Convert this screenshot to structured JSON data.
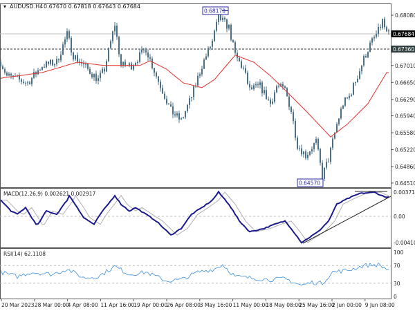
{
  "header": {
    "symbol": "AUDUSD.H4",
    "ohlc": "0.67670 0.67818 0.67643 0.67684",
    "menu_icon": "triangle-down-icon"
  },
  "colors": {
    "candle": "#4a6f86",
    "ma": "#e0302a",
    "macd": "#1a1a8c",
    "signal": "#b0b0b0",
    "rsi": "#3b8fe0",
    "bid_label_bg": "#000000",
    "level_label_bg": "#2f3f3f",
    "annotation_border": "#2a2aa0"
  },
  "chart_data": [
    {
      "type": "candlestick",
      "title": "AUDUSD.H4",
      "y_ticks": [
        "0.68080",
        "0.67010",
        "0.66650",
        "0.66290",
        "0.65940",
        "0.65580",
        "0.65220",
        "0.64860",
        "0.64510"
      ],
      "ylim": [
        0.6451,
        0.6808
      ],
      "x_ticks": [
        "20 Mar 2023",
        "28 Mar 00:00",
        "4 Apr 08:00",
        "11 Apr 16:00",
        "19 Apr 00:00",
        "26 Apr 08:00",
        "3 May 16:00",
        "11 May 00:00",
        "18 May 08:00",
        "25 May 16:00",
        "2 Jun 00:00",
        "9 Jun 08:00"
      ],
      "bid_line": "0.67684",
      "level_line": "0.67360",
      "high_annotation": "0.68170",
      "low_annotation": "0.64570",
      "price_path": [
        [
          0,
          0.6708
        ],
        [
          3,
          0.6679
        ],
        [
          13,
          0.6664
        ],
        [
          20,
          0.6701
        ],
        [
          27,
          0.6708
        ],
        [
          32,
          0.6767
        ],
        [
          35,
          0.6723
        ],
        [
          40,
          0.6701
        ],
        [
          47,
          0.6671
        ],
        [
          50,
          0.6693
        ],
        [
          55,
          0.6789
        ],
        [
          58,
          0.6701
        ],
        [
          63,
          0.6701
        ],
        [
          70,
          0.6737
        ],
        [
          75,
          0.6679
        ],
        [
          82,
          0.6605
        ],
        [
          87,
          0.6583
        ],
        [
          92,
          0.6635
        ],
        [
          97,
          0.6701
        ],
        [
          102,
          0.6752
        ],
        [
          105,
          0.6804
        ],
        [
          110,
          0.6782
        ],
        [
          113,
          0.6723
        ],
        [
          117,
          0.6693
        ],
        [
          120,
          0.6649
        ],
        [
          125,
          0.6657
        ],
        [
          130,
          0.662
        ],
        [
          133,
          0.6657
        ],
        [
          137,
          0.6649
        ],
        [
          140,
          0.6605
        ],
        [
          143,
          0.6532
        ],
        [
          147,
          0.651
        ],
        [
          152,
          0.6539
        ],
        [
          155,
          0.6466
        ],
        [
          158,
          0.6502
        ],
        [
          162,
          0.6576
        ],
        [
          165,
          0.662
        ],
        [
          168,
          0.6635
        ],
        [
          172,
          0.6679
        ],
        [
          175,
          0.6715
        ],
        [
          178,
          0.6745
        ],
        [
          182,
          0.6774
        ],
        [
          184,
          0.6796
        ],
        [
          186,
          0.6768
        ]
      ],
      "ma_path": [
        [
          0,
          0.6674
        ],
        [
          20,
          0.6686
        ],
        [
          37,
          0.6708
        ],
        [
          50,
          0.6701
        ],
        [
          67,
          0.6701
        ],
        [
          72,
          0.6711
        ],
        [
          80,
          0.6693
        ],
        [
          88,
          0.6664
        ],
        [
          97,
          0.6654
        ],
        [
          103,
          0.6671
        ],
        [
          113,
          0.6723
        ],
        [
          122,
          0.6708
        ],
        [
          130,
          0.6679
        ],
        [
          137,
          0.6649
        ],
        [
          147,
          0.6605
        ],
        [
          159,
          0.6549
        ],
        [
          167,
          0.6576
        ],
        [
          177,
          0.662
        ],
        [
          186,
          0.6686
        ]
      ]
    },
    {
      "type": "line",
      "title": "MACD(12,26,9) 0.002621 0.002917",
      "y_ticks": [
        "0.003715",
        "0.00",
        "-0.004102"
      ],
      "ylim": [
        -0.004102,
        0.003715
      ],
      "macd_path": [
        [
          0,
          0.0024
        ],
        [
          5,
          0.0008
        ],
        [
          8,
          0.0003
        ],
        [
          12,
          0.0013
        ],
        [
          17,
          -0.0012
        ],
        [
          18,
          -0.0012
        ],
        [
          22,
          0.0008
        ],
        [
          27,
          0.0003
        ],
        [
          32,
          0.0024
        ],
        [
          33,
          0.0031
        ],
        [
          37,
          0.0013
        ],
        [
          40,
          -0.0002
        ],
        [
          45,
          -0.0012
        ],
        [
          48,
          0.0003
        ],
        [
          55,
          0.0031
        ],
        [
          58,
          0.0018
        ],
        [
          62,
          0.0008
        ],
        [
          65,
          0.0013
        ],
        [
          70,
          0.0003
        ],
        [
          75,
          -0.0007
        ],
        [
          82,
          -0.0028
        ],
        [
          87,
          -0.0018
        ],
        [
          92,
          0.0003
        ],
        [
          97,
          0.0013
        ],
        [
          102,
          0.0024
        ],
        [
          105,
          0.0036
        ],
        [
          110,
          0.0018
        ],
        [
          115,
          -0.0007
        ],
        [
          120,
          -0.0023
        ],
        [
          127,
          -0.0018
        ],
        [
          132,
          -0.0012
        ],
        [
          137,
          -0.0007
        ],
        [
          140,
          -0.0018
        ],
        [
          145,
          -0.0039
        ],
        [
          148,
          -0.0033
        ],
        [
          153,
          -0.0023
        ],
        [
          158,
          -0.0007
        ],
        [
          162,
          0.0018
        ],
        [
          167,
          0.0026
        ],
        [
          173,
          0.0034
        ],
        [
          180,
          0.0036
        ],
        [
          185,
          0.0029
        ]
      ],
      "signal_lag": 3,
      "zero_line": true
    },
    {
      "type": "line",
      "title": "RSI(14) 62.1108",
      "y_ticks": [
        "100",
        "70",
        "30",
        "0"
      ],
      "ylim": [
        0,
        100
      ],
      "levels": [
        70,
        30
      ],
      "rsi_path": [
        [
          0,
          55
        ],
        [
          8,
          45
        ],
        [
          15,
          55
        ],
        [
          25,
          50
        ],
        [
          32,
          62
        ],
        [
          40,
          42
        ],
        [
          47,
          45
        ],
        [
          55,
          68
        ],
        [
          62,
          50
        ],
        [
          70,
          55
        ],
        [
          80,
          35
        ],
        [
          87,
          38
        ],
        [
          95,
          55
        ],
        [
          103,
          62
        ],
        [
          107,
          72
        ],
        [
          113,
          45
        ],
        [
          120,
          42
        ],
        [
          130,
          38
        ],
        [
          137,
          40
        ],
        [
          145,
          25
        ],
        [
          150,
          32
        ],
        [
          155,
          30
        ],
        [
          160,
          55
        ],
        [
          168,
          60
        ],
        [
          175,
          70
        ],
        [
          182,
          72
        ],
        [
          186,
          62
        ]
      ]
    }
  ]
}
